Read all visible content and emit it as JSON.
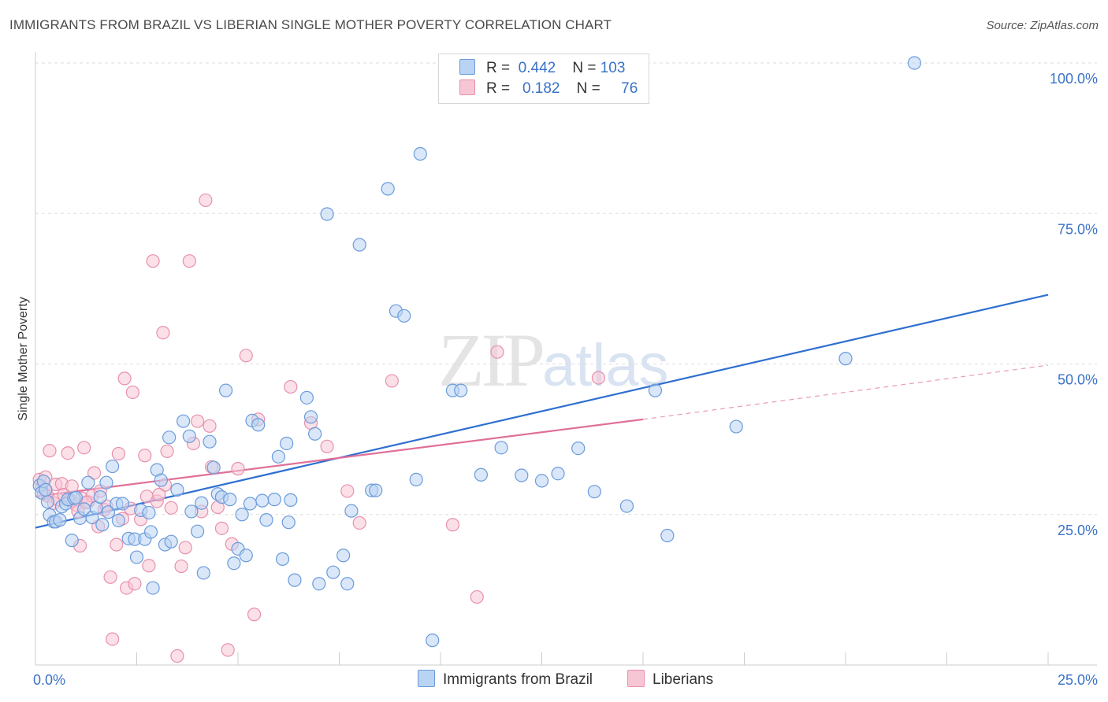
{
  "header": {
    "title": "IMMIGRANTS FROM BRAZIL VS LIBERIAN SINGLE MOTHER POVERTY CORRELATION CHART",
    "source": "Source: ZipAtlas.com"
  },
  "watermark": {
    "zip": "ZIP",
    "atlas": "atlas"
  },
  "legend": {
    "rows": [
      {
        "r_label": "R =",
        "r_value": "0.442",
        "n_label": "N =",
        "n_value": "103",
        "color": "#a8c8f0"
      },
      {
        "r_label": "R =",
        "r_value": "0.182",
        "n_label": "N =",
        "n_value": "76",
        "color": "#f5b8cb"
      }
    ]
  },
  "bottom_legend": {
    "brazil": "Immigrants from Brazil",
    "liberian": "Liberians"
  },
  "colors": {
    "blue_fill": "#b9d3f3",
    "blue_stroke": "#6b9bdb",
    "blue_line": "#2f6fd0",
    "pink_fill": "#f7c6d5",
    "pink_stroke": "#e890ad",
    "pink_line": "#e0709a",
    "axis_text": "#3a72c7",
    "grid": "#dddddd"
  },
  "chart_data": {
    "type": "scatter",
    "title": "IMMIGRANTS FROM BRAZIL VS LIBERIAN SINGLE MOTHER POVERTY CORRELATION CHART",
    "xlabel": "",
    "ylabel": "Single Mother Poverty",
    "xlim": [
      0,
      25
    ],
    "ylim": [
      0,
      100
    ],
    "x_tick_labels": [
      "0.0%",
      "25.0%"
    ],
    "y_tick_labels": [
      "25.0%",
      "50.0%",
      "75.0%",
      "100.0%"
    ],
    "y_ticks": [
      25,
      50,
      75,
      100
    ],
    "series": [
      {
        "name": "Immigrants from Brazil",
        "R": 0.442,
        "N": 103,
        "trend": {
          "x": [
            0,
            25
          ],
          "y": [
            22.8,
            61.5
          ]
        },
        "points": [
          [
            0.1,
            29.8
          ],
          [
            0.15,
            28.6
          ],
          [
            0.2,
            30.5
          ],
          [
            0.3,
            27.1
          ],
          [
            0.35,
            24.9
          ],
          [
            0.45,
            23.8
          ],
          [
            0.5,
            23.8
          ],
          [
            0.6,
            24.1
          ],
          [
            0.65,
            26.3
          ],
          [
            0.75,
            26.8
          ],
          [
            0.8,
            27.5
          ],
          [
            0.9,
            20.7
          ],
          [
            0.95,
            27.7
          ],
          [
            1.1,
            24.4
          ],
          [
            1.2,
            25.9
          ],
          [
            1.3,
            30.3
          ],
          [
            1.4,
            24.5
          ],
          [
            1.5,
            26.1
          ],
          [
            1.6,
            27.9
          ],
          [
            1.65,
            23.3
          ],
          [
            1.75,
            30.3
          ],
          [
            1.8,
            25.4
          ],
          [
            1.9,
            33.0
          ],
          [
            2.0,
            26.8
          ],
          [
            2.05,
            24.0
          ],
          [
            2.15,
            26.8
          ],
          [
            2.3,
            21.0
          ],
          [
            2.45,
            20.9
          ],
          [
            2.5,
            17.9
          ],
          [
            2.6,
            25.7
          ],
          [
            2.7,
            20.9
          ],
          [
            2.8,
            25.3
          ],
          [
            2.85,
            22.1
          ],
          [
            2.9,
            12.8
          ],
          [
            3.0,
            32.4
          ],
          [
            3.1,
            30.7
          ],
          [
            3.2,
            20.0
          ],
          [
            3.3,
            37.8
          ],
          [
            3.35,
            20.5
          ],
          [
            3.5,
            29.1
          ],
          [
            3.65,
            40.5
          ],
          [
            3.8,
            38.0
          ],
          [
            3.85,
            25.5
          ],
          [
            4.0,
            22.2
          ],
          [
            4.1,
            26.9
          ],
          [
            4.15,
            15.3
          ],
          [
            4.3,
            37.1
          ],
          [
            4.4,
            32.8
          ],
          [
            4.5,
            28.4
          ],
          [
            4.6,
            27.9
          ],
          [
            4.7,
            45.6
          ],
          [
            4.8,
            27.5
          ],
          [
            4.9,
            16.9
          ],
          [
            5.0,
            19.3
          ],
          [
            5.1,
            25.0
          ],
          [
            5.2,
            18.2
          ],
          [
            5.3,
            26.8
          ],
          [
            5.35,
            40.6
          ],
          [
            5.5,
            39.9
          ],
          [
            5.6,
            27.3
          ],
          [
            5.7,
            24.1
          ],
          [
            5.9,
            27.5
          ],
          [
            6.0,
            34.6
          ],
          [
            6.1,
            17.6
          ],
          [
            6.2,
            36.8
          ],
          [
            6.25,
            23.7
          ],
          [
            6.3,
            27.4
          ],
          [
            6.4,
            14.1
          ],
          [
            6.7,
            44.4
          ],
          [
            6.8,
            41.2
          ],
          [
            6.9,
            38.4
          ],
          [
            7.0,
            13.5
          ],
          [
            7.2,
            74.9
          ],
          [
            7.35,
            15.4
          ],
          [
            7.6,
            18.2
          ],
          [
            7.7,
            13.5
          ],
          [
            7.8,
            25.6
          ],
          [
            8.0,
            69.8
          ],
          [
            8.3,
            29.0
          ],
          [
            8.4,
            29.0
          ],
          [
            8.7,
            79.1
          ],
          [
            8.9,
            58.8
          ],
          [
            9.1,
            58.0
          ],
          [
            9.4,
            30.8
          ],
          [
            9.5,
            84.9
          ],
          [
            9.8,
            4.1
          ],
          [
            10.3,
            45.6
          ],
          [
            10.5,
            45.6
          ],
          [
            11.0,
            31.6
          ],
          [
            11.5,
            36.1
          ],
          [
            12.0,
            31.5
          ],
          [
            12.5,
            30.6
          ],
          [
            12.9,
            31.8
          ],
          [
            13.4,
            36.0
          ],
          [
            13.8,
            28.8
          ],
          [
            14.6,
            26.4
          ],
          [
            15.3,
            45.6
          ],
          [
            15.6,
            21.5
          ],
          [
            17.3,
            39.6
          ],
          [
            20.0,
            50.9
          ],
          [
            21.7,
            100.0
          ],
          [
            0.25,
            29.1
          ],
          [
            1.0,
            27.8
          ]
        ]
      },
      {
        "name": "Liberians",
        "R": 0.182,
        "N": 76,
        "trend": {
          "x": [
            0,
            15
          ],
          "y": [
            28.0,
            40.8
          ]
        },
        "trend_extended": {
          "x": [
            15,
            25
          ],
          "y": [
            40.8,
            49.8
          ]
        },
        "points": [
          [
            0.1,
            30.8
          ],
          [
            0.15,
            29.5
          ],
          [
            0.25,
            31.2
          ],
          [
            0.3,
            28.1
          ],
          [
            0.35,
            35.6
          ],
          [
            0.45,
            26.9
          ],
          [
            0.5,
            30.0
          ],
          [
            0.55,
            27.5
          ],
          [
            0.65,
            30.1
          ],
          [
            0.7,
            28.3
          ],
          [
            0.8,
            35.2
          ],
          [
            0.85,
            27.4
          ],
          [
            0.9,
            29.7
          ],
          [
            1.0,
            26.6
          ],
          [
            1.05,
            25.5
          ],
          [
            1.1,
            19.8
          ],
          [
            1.15,
            27.7
          ],
          [
            1.2,
            36.1
          ],
          [
            1.3,
            27.1
          ],
          [
            1.4,
            28.1
          ],
          [
            1.45,
            31.9
          ],
          [
            1.55,
            23.0
          ],
          [
            1.6,
            28.9
          ],
          [
            1.7,
            25.8
          ],
          [
            1.75,
            26.4
          ],
          [
            1.85,
            14.6
          ],
          [
            1.9,
            4.3
          ],
          [
            2.0,
            20.0
          ],
          [
            2.05,
            35.1
          ],
          [
            2.15,
            24.3
          ],
          [
            2.2,
            47.6
          ],
          [
            2.25,
            12.8
          ],
          [
            2.4,
            45.3
          ],
          [
            2.45,
            13.5
          ],
          [
            2.6,
            24.2
          ],
          [
            2.7,
            34.8
          ],
          [
            2.75,
            28.0
          ],
          [
            2.8,
            16.5
          ],
          [
            2.9,
            67.1
          ],
          [
            3.0,
            27.2
          ],
          [
            3.15,
            55.2
          ],
          [
            3.2,
            29.9
          ],
          [
            3.25,
            35.5
          ],
          [
            3.35,
            26.1
          ],
          [
            3.5,
            1.5
          ],
          [
            3.6,
            16.4
          ],
          [
            3.7,
            19.5
          ],
          [
            3.8,
            67.1
          ],
          [
            3.9,
            36.8
          ],
          [
            4.0,
            40.5
          ],
          [
            4.1,
            25.5
          ],
          [
            4.2,
            77.2
          ],
          [
            4.3,
            39.7
          ],
          [
            4.35,
            32.9
          ],
          [
            4.5,
            26.2
          ],
          [
            4.6,
            22.7
          ],
          [
            4.75,
            2.5
          ],
          [
            4.85,
            20.1
          ],
          [
            5.0,
            32.6
          ],
          [
            5.2,
            51.4
          ],
          [
            5.4,
            8.4
          ],
          [
            5.5,
            40.8
          ],
          [
            6.3,
            46.2
          ],
          [
            6.8,
            40.2
          ],
          [
            7.2,
            36.3
          ],
          [
            7.7,
            28.9
          ],
          [
            8.0,
            23.6
          ],
          [
            8.8,
            47.2
          ],
          [
            10.3,
            23.3
          ],
          [
            10.9,
            11.3
          ],
          [
            11.4,
            52.0
          ],
          [
            13.9,
            47.7
          ],
          [
            0.2,
            28.5
          ],
          [
            1.25,
            27.0
          ],
          [
            2.35,
            26.0
          ],
          [
            3.05,
            28.3
          ]
        ]
      }
    ]
  }
}
